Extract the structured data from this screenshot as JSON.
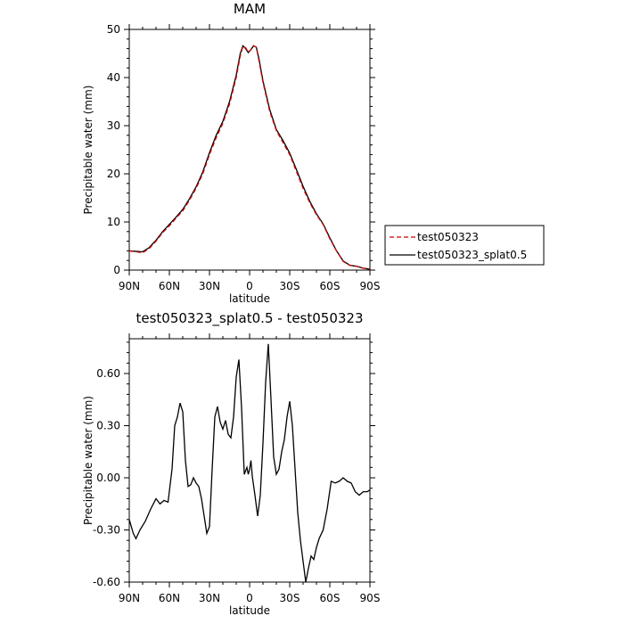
{
  "chart_data": [
    {
      "type": "line",
      "title": "MAM",
      "xlabel": "latitude",
      "ylabel": "Precipitable water (mm)",
      "x_axis": {
        "range": [
          -90,
          90
        ],
        "direction": "north-to-south",
        "ticks": [
          -90,
          -60,
          -30,
          0,
          30,
          60,
          90
        ],
        "tick_labels": [
          "90N",
          "60N",
          "30N",
          "0",
          "30S",
          "60S",
          "90S"
        ]
      },
      "y_axis": {
        "range": [
          0,
          50
        ],
        "ticks": [
          0,
          10,
          20,
          30,
          40,
          50
        ],
        "tick_labels": [
          "0",
          "10",
          "20",
          "30",
          "40",
          "50"
        ]
      },
      "grid": false,
      "legend_position": "right",
      "series": [
        {
          "name": "test050323",
          "color": "#cc0000",
          "style": "dashed",
          "x": [
            -90,
            -85,
            -80,
            -75,
            -70,
            -65,
            -60,
            -55,
            -50,
            -45,
            -40,
            -35,
            -30,
            -25,
            -20,
            -15,
            -10,
            -7,
            -5,
            -3,
            -1,
            1,
            3,
            5,
            7,
            10,
            15,
            20,
            25,
            30,
            35,
            40,
            45,
            50,
            55,
            60,
            65,
            70,
            75,
            80,
            85,
            90
          ],
          "values": [
            4.0,
            3.8,
            3.6,
            4.5,
            6.0,
            7.8,
            9.2,
            10.8,
            12.3,
            14.5,
            17.0,
            20.0,
            24.0,
            27.5,
            30.5,
            34.5,
            40.0,
            44.5,
            46.5,
            46.2,
            45.3,
            45.8,
            46.6,
            46.3,
            43.5,
            39.0,
            33.0,
            29.0,
            26.5,
            24.0,
            20.5,
            17.0,
            14.0,
            11.5,
            9.5,
            6.5,
            4.0,
            1.8,
            1.0,
            0.8,
            0.4,
            0.2
          ]
        },
        {
          "name": "test050323_splat0.5",
          "color": "#000000",
          "style": "solid",
          "x": [
            -90,
            -85,
            -80,
            -75,
            -70,
            -65,
            -60,
            -55,
            -50,
            -45,
            -40,
            -35,
            -30,
            -25,
            -20,
            -15,
            -10,
            -7,
            -5,
            -3,
            -1,
            1,
            3,
            5,
            7,
            10,
            15,
            20,
            25,
            30,
            35,
            40,
            45,
            50,
            55,
            60,
            65,
            70,
            75,
            80,
            85,
            90
          ],
          "values": [
            4.0,
            3.9,
            3.8,
            4.7,
            6.2,
            8.0,
            9.5,
            11.0,
            12.6,
            14.8,
            17.3,
            20.4,
            24.4,
            28.0,
            30.9,
            35.0,
            40.5,
            45.0,
            46.6,
            46.0,
            45.2,
            45.8,
            46.6,
            46.3,
            43.9,
            39.3,
            33.4,
            29.2,
            26.9,
            24.3,
            20.9,
            17.4,
            14.3,
            11.7,
            9.6,
            6.7,
            4.0,
            1.9,
            1.0,
            0.8,
            0.4,
            0.2
          ]
        }
      ]
    },
    {
      "type": "line",
      "title": "test050323_splat0.5 - test050323",
      "xlabel": "latitude",
      "ylabel": "Precipitable water (mm)",
      "x_axis": {
        "range": [
          -90,
          90
        ],
        "direction": "north-to-south",
        "ticks": [
          -90,
          -60,
          -30,
          0,
          30,
          60,
          90
        ],
        "tick_labels": [
          "90N",
          "60N",
          "30N",
          "0",
          "30S",
          "60S",
          "90S"
        ]
      },
      "y_axis": {
        "range": [
          -0.6,
          0.8
        ],
        "ticks": [
          -0.6,
          -0.3,
          0.0,
          0.3,
          0.6
        ],
        "tick_labels": [
          "-0.60",
          "-0.30",
          "0.00",
          "0.30",
          "0.60"
        ]
      },
      "grid": false,
      "series": [
        {
          "color": "#000000",
          "style": "solid",
          "x": [
            -90,
            -87,
            -85,
            -82,
            -78,
            -74,
            -70,
            -67,
            -64,
            -61,
            -58,
            -56,
            -54,
            -52,
            -50,
            -48,
            -46,
            -44,
            -42,
            -40,
            -38,
            -36,
            -34,
            -32,
            -30,
            -28,
            -26,
            -24,
            -22,
            -20,
            -18,
            -16,
            -14,
            -12,
            -10,
            -8,
            -6,
            -4,
            -2,
            -1,
            0,
            1,
            2,
            4,
            6,
            8,
            10,
            12,
            14,
            16,
            18,
            20,
            22,
            24,
            26,
            28,
            30,
            32,
            34,
            36,
            38,
            40,
            42,
            44,
            46,
            48,
            50,
            52,
            55,
            58,
            61,
            64,
            67,
            70,
            73,
            76,
            79,
            82,
            85,
            88,
            90
          ],
          "values": [
            -0.24,
            -0.32,
            -0.35,
            -0.3,
            -0.25,
            -0.18,
            -0.12,
            -0.15,
            -0.13,
            -0.14,
            0.05,
            0.3,
            0.35,
            0.43,
            0.38,
            0.1,
            -0.05,
            -0.04,
            0.0,
            -0.03,
            -0.05,
            -0.12,
            -0.22,
            -0.32,
            -0.28,
            0.05,
            0.35,
            0.41,
            0.32,
            0.28,
            0.33,
            0.25,
            0.23,
            0.35,
            0.58,
            0.68,
            0.4,
            0.02,
            0.06,
            0.02,
            0.05,
            0.1,
            0.01,
            -0.1,
            -0.22,
            -0.1,
            0.2,
            0.55,
            0.77,
            0.45,
            0.12,
            0.02,
            0.05,
            0.15,
            0.22,
            0.35,
            0.44,
            0.3,
            0.05,
            -0.2,
            -0.36,
            -0.48,
            -0.6,
            -0.52,
            -0.45,
            -0.47,
            -0.4,
            -0.35,
            -0.3,
            -0.18,
            -0.02,
            -0.03,
            -0.02,
            0.0,
            -0.02,
            -0.03,
            -0.08,
            -0.1,
            -0.08,
            -0.08,
            -0.07
          ]
        }
      ]
    }
  ]
}
